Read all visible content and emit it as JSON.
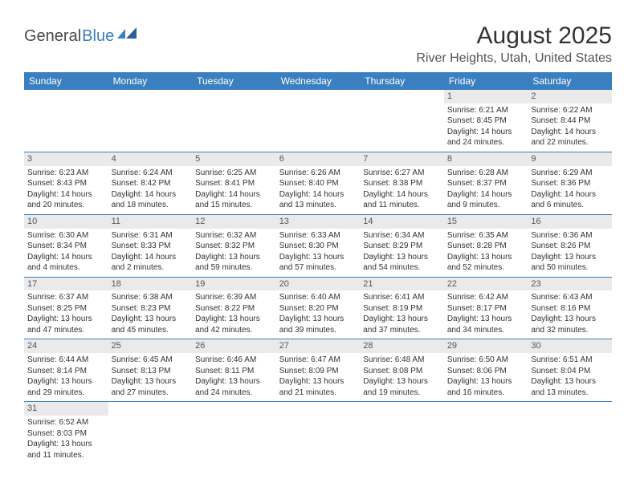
{
  "colors": {
    "header_bg": "#3a7fbf",
    "header_fg": "#ffffff",
    "daynum_bg": "#eaeaea",
    "daynum_fg": "#555555",
    "border": "#3a7fbf",
    "text": "#333333",
    "logo_gray": "#4a4a4a",
    "logo_blue": "#3a7fbf"
  },
  "logo": {
    "part1": "General",
    "part2": "Blue"
  },
  "title": "August 2025",
  "location": "River Heights, Utah, United States",
  "weekdays": [
    "Sunday",
    "Monday",
    "Tuesday",
    "Wednesday",
    "Thursday",
    "Friday",
    "Saturday"
  ],
  "weeks": [
    [
      null,
      null,
      null,
      null,
      null,
      {
        "n": "1",
        "sr": "Sunrise: 6:21 AM",
        "ss": "Sunset: 8:45 PM",
        "d1": "Daylight: 14 hours",
        "d2": "and 24 minutes."
      },
      {
        "n": "2",
        "sr": "Sunrise: 6:22 AM",
        "ss": "Sunset: 8:44 PM",
        "d1": "Daylight: 14 hours",
        "d2": "and 22 minutes."
      }
    ],
    [
      {
        "n": "3",
        "sr": "Sunrise: 6:23 AM",
        "ss": "Sunset: 8:43 PM",
        "d1": "Daylight: 14 hours",
        "d2": "and 20 minutes."
      },
      {
        "n": "4",
        "sr": "Sunrise: 6:24 AM",
        "ss": "Sunset: 8:42 PM",
        "d1": "Daylight: 14 hours",
        "d2": "and 18 minutes."
      },
      {
        "n": "5",
        "sr": "Sunrise: 6:25 AM",
        "ss": "Sunset: 8:41 PM",
        "d1": "Daylight: 14 hours",
        "d2": "and 15 minutes."
      },
      {
        "n": "6",
        "sr": "Sunrise: 6:26 AM",
        "ss": "Sunset: 8:40 PM",
        "d1": "Daylight: 14 hours",
        "d2": "and 13 minutes."
      },
      {
        "n": "7",
        "sr": "Sunrise: 6:27 AM",
        "ss": "Sunset: 8:38 PM",
        "d1": "Daylight: 14 hours",
        "d2": "and 11 minutes."
      },
      {
        "n": "8",
        "sr": "Sunrise: 6:28 AM",
        "ss": "Sunset: 8:37 PM",
        "d1": "Daylight: 14 hours",
        "d2": "and 9 minutes."
      },
      {
        "n": "9",
        "sr": "Sunrise: 6:29 AM",
        "ss": "Sunset: 8:36 PM",
        "d1": "Daylight: 14 hours",
        "d2": "and 6 minutes."
      }
    ],
    [
      {
        "n": "10",
        "sr": "Sunrise: 6:30 AM",
        "ss": "Sunset: 8:34 PM",
        "d1": "Daylight: 14 hours",
        "d2": "and 4 minutes."
      },
      {
        "n": "11",
        "sr": "Sunrise: 6:31 AM",
        "ss": "Sunset: 8:33 PM",
        "d1": "Daylight: 14 hours",
        "d2": "and 2 minutes."
      },
      {
        "n": "12",
        "sr": "Sunrise: 6:32 AM",
        "ss": "Sunset: 8:32 PM",
        "d1": "Daylight: 13 hours",
        "d2": "and 59 minutes."
      },
      {
        "n": "13",
        "sr": "Sunrise: 6:33 AM",
        "ss": "Sunset: 8:30 PM",
        "d1": "Daylight: 13 hours",
        "d2": "and 57 minutes."
      },
      {
        "n": "14",
        "sr": "Sunrise: 6:34 AM",
        "ss": "Sunset: 8:29 PM",
        "d1": "Daylight: 13 hours",
        "d2": "and 54 minutes."
      },
      {
        "n": "15",
        "sr": "Sunrise: 6:35 AM",
        "ss": "Sunset: 8:28 PM",
        "d1": "Daylight: 13 hours",
        "d2": "and 52 minutes."
      },
      {
        "n": "16",
        "sr": "Sunrise: 6:36 AM",
        "ss": "Sunset: 8:26 PM",
        "d1": "Daylight: 13 hours",
        "d2": "and 50 minutes."
      }
    ],
    [
      {
        "n": "17",
        "sr": "Sunrise: 6:37 AM",
        "ss": "Sunset: 8:25 PM",
        "d1": "Daylight: 13 hours",
        "d2": "and 47 minutes."
      },
      {
        "n": "18",
        "sr": "Sunrise: 6:38 AM",
        "ss": "Sunset: 8:23 PM",
        "d1": "Daylight: 13 hours",
        "d2": "and 45 minutes."
      },
      {
        "n": "19",
        "sr": "Sunrise: 6:39 AM",
        "ss": "Sunset: 8:22 PM",
        "d1": "Daylight: 13 hours",
        "d2": "and 42 minutes."
      },
      {
        "n": "20",
        "sr": "Sunrise: 6:40 AM",
        "ss": "Sunset: 8:20 PM",
        "d1": "Daylight: 13 hours",
        "d2": "and 39 minutes."
      },
      {
        "n": "21",
        "sr": "Sunrise: 6:41 AM",
        "ss": "Sunset: 8:19 PM",
        "d1": "Daylight: 13 hours",
        "d2": "and 37 minutes."
      },
      {
        "n": "22",
        "sr": "Sunrise: 6:42 AM",
        "ss": "Sunset: 8:17 PM",
        "d1": "Daylight: 13 hours",
        "d2": "and 34 minutes."
      },
      {
        "n": "23",
        "sr": "Sunrise: 6:43 AM",
        "ss": "Sunset: 8:16 PM",
        "d1": "Daylight: 13 hours",
        "d2": "and 32 minutes."
      }
    ],
    [
      {
        "n": "24",
        "sr": "Sunrise: 6:44 AM",
        "ss": "Sunset: 8:14 PM",
        "d1": "Daylight: 13 hours",
        "d2": "and 29 minutes."
      },
      {
        "n": "25",
        "sr": "Sunrise: 6:45 AM",
        "ss": "Sunset: 8:13 PM",
        "d1": "Daylight: 13 hours",
        "d2": "and 27 minutes."
      },
      {
        "n": "26",
        "sr": "Sunrise: 6:46 AM",
        "ss": "Sunset: 8:11 PM",
        "d1": "Daylight: 13 hours",
        "d2": "and 24 minutes."
      },
      {
        "n": "27",
        "sr": "Sunrise: 6:47 AM",
        "ss": "Sunset: 8:09 PM",
        "d1": "Daylight: 13 hours",
        "d2": "and 21 minutes."
      },
      {
        "n": "28",
        "sr": "Sunrise: 6:48 AM",
        "ss": "Sunset: 8:08 PM",
        "d1": "Daylight: 13 hours",
        "d2": "and 19 minutes."
      },
      {
        "n": "29",
        "sr": "Sunrise: 6:50 AM",
        "ss": "Sunset: 8:06 PM",
        "d1": "Daylight: 13 hours",
        "d2": "and 16 minutes."
      },
      {
        "n": "30",
        "sr": "Sunrise: 6:51 AM",
        "ss": "Sunset: 8:04 PM",
        "d1": "Daylight: 13 hours",
        "d2": "and 13 minutes."
      }
    ],
    [
      {
        "n": "31",
        "sr": "Sunrise: 6:52 AM",
        "ss": "Sunset: 8:03 PM",
        "d1": "Daylight: 13 hours",
        "d2": "and 11 minutes."
      },
      null,
      null,
      null,
      null,
      null,
      null
    ]
  ]
}
